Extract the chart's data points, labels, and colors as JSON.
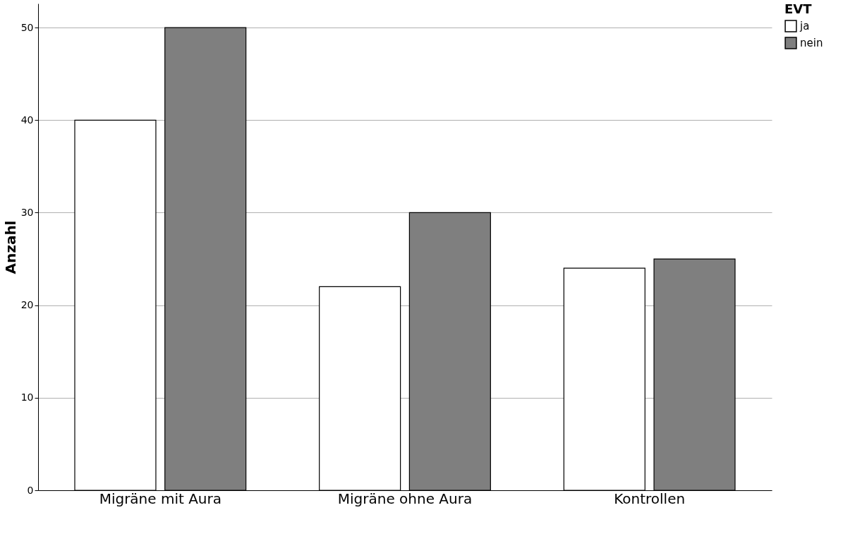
{
  "chart_data": {
    "type": "bar",
    "ylabel": "Anzahl",
    "legend_title": "EVT",
    "categories": [
      "Migräne mit Aura",
      "Migräne ohne Aura",
      "Kontrollen"
    ],
    "series": [
      {
        "name": "ja",
        "color": "#ffffff",
        "values": [
          40,
          22,
          24
        ]
      },
      {
        "name": "nein",
        "color": "#7f7f7f",
        "values": [
          50,
          30,
          25
        ]
      }
    ],
    "ylim": [
      0,
      52.6
    ],
    "yticks": [
      0,
      10,
      20,
      30,
      40,
      50
    ],
    "grid": "y",
    "legend": "top right"
  }
}
